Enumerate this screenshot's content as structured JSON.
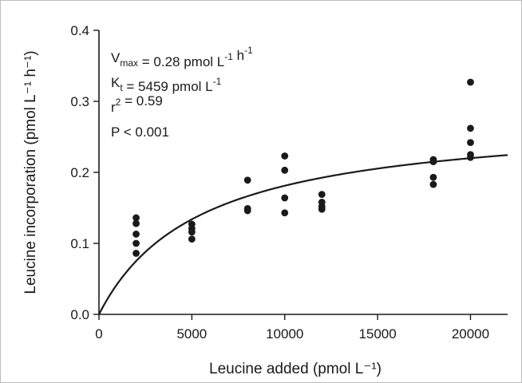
{
  "chart_data": {
    "type": "scatter",
    "xlabel": "Leucine added (pmol L⁻¹)",
    "ylabel": "Leucine incorporation (pmol L⁻¹ h⁻¹)",
    "xlim": [
      0,
      22000
    ],
    "ylim": [
      0,
      0.4
    ],
    "x_ticks": [
      "0",
      "5000",
      "10000",
      "15000",
      "20000"
    ],
    "y_ticks": [
      "0.0",
      "0.1",
      "0.2",
      "0.3",
      "0.4"
    ],
    "grid": false,
    "points": [
      {
        "x": 2000,
        "y": 0.136
      },
      {
        "x": 2000,
        "y": 0.128
      },
      {
        "x": 2000,
        "y": 0.113
      },
      {
        "x": 2000,
        "y": 0.1
      },
      {
        "x": 2000,
        "y": 0.086
      },
      {
        "x": 5000,
        "y": 0.127
      },
      {
        "x": 5000,
        "y": 0.121
      },
      {
        "x": 5000,
        "y": 0.116
      },
      {
        "x": 5000,
        "y": 0.106
      },
      {
        "x": 8000,
        "y": 0.189
      },
      {
        "x": 8000,
        "y": 0.149
      },
      {
        "x": 8000,
        "y": 0.146
      },
      {
        "x": 10000,
        "y": 0.223
      },
      {
        "x": 10000,
        "y": 0.203
      },
      {
        "x": 10000,
        "y": 0.164
      },
      {
        "x": 10000,
        "y": 0.143
      },
      {
        "x": 12000,
        "y": 0.169
      },
      {
        "x": 12000,
        "y": 0.158
      },
      {
        "x": 12000,
        "y": 0.152
      },
      {
        "x": 12000,
        "y": 0.148
      },
      {
        "x": 18000,
        "y": 0.218
      },
      {
        "x": 18000,
        "y": 0.215
      },
      {
        "x": 18000,
        "y": 0.193
      },
      {
        "x": 18000,
        "y": 0.183
      },
      {
        "x": 20000,
        "y": 0.327
      },
      {
        "x": 20000,
        "y": 0.262
      },
      {
        "x": 20000,
        "y": 0.242
      },
      {
        "x": 20000,
        "y": 0.225
      },
      {
        "x": 20000,
        "y": 0.221
      }
    ],
    "fit": {
      "model": "Michaelis-Menten",
      "vmax": 0.28,
      "kt": 5459
    },
    "annotations": [
      {
        "parts": [
          [
            "V",
            "n"
          ],
          [
            "max",
            "sub"
          ],
          [
            " = 0.28 pmol L",
            "n"
          ],
          [
            "-1",
            "sup"
          ],
          [
            " h",
            "n"
          ],
          [
            "-1",
            "sup"
          ]
        ]
      },
      {
        "parts": [
          [
            "K",
            "n"
          ],
          [
            "t",
            "sub"
          ],
          [
            " = 5459 pmol L",
            "n"
          ],
          [
            "-1",
            "sup"
          ]
        ]
      },
      {
        "parts": [
          [
            "r",
            "n"
          ],
          [
            "2",
            "sup"
          ],
          [
            " = 0.59",
            "n"
          ]
        ]
      },
      {
        "parts": [
          [
            "P < 0.001",
            "n"
          ]
        ]
      }
    ],
    "marker_color": "#1a1a1a",
    "line_color": "#1a1a1a"
  }
}
